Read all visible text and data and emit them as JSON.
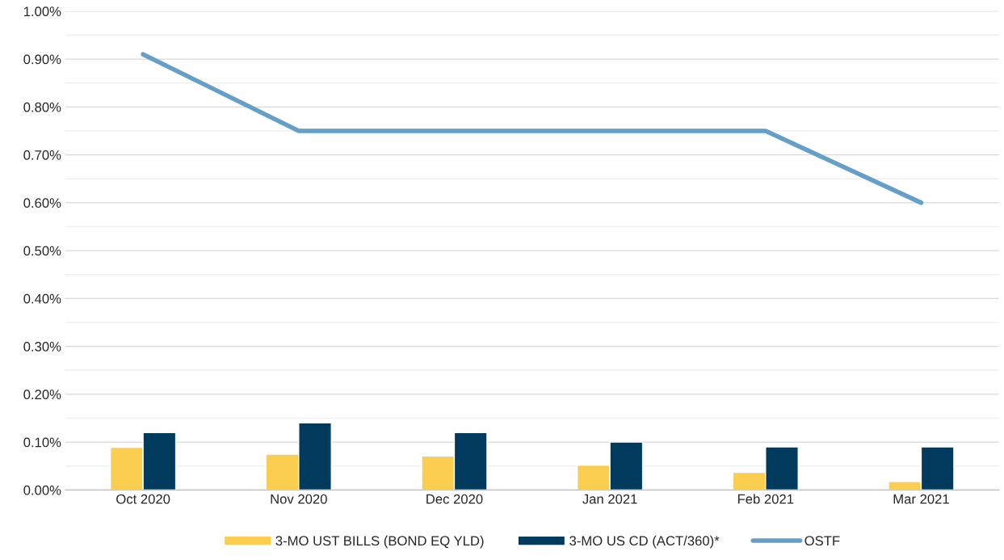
{
  "chart_data": {
    "type": "bar",
    "categories": [
      "Oct 2020",
      "Nov 2020",
      "Dec 2020",
      "Jan 2021",
      "Feb 2021",
      "Mar 2021"
    ],
    "series": [
      {
        "name": "3-MO UST BILLS (BOND EQ YLD)",
        "color": "#fcce4f",
        "values": [
          0.089,
          0.075,
          0.071,
          0.052,
          0.037,
          0.018
        ]
      },
      {
        "name": "3-MO US CD (ACT/360)*",
        "color": "#003a5d",
        "values": [
          0.12,
          0.14,
          0.12,
          0.1,
          0.09,
          0.09
        ]
      },
      {
        "name": "OSTF",
        "type": "line",
        "color": "#659fc8",
        "values": [
          0.91,
          0.75,
          0.75,
          0.75,
          0.75,
          0.6
        ]
      }
    ],
    "ylim": [
      0,
      1.0
    ],
    "yticks": [
      {
        "value": 0,
        "label": "0.00%"
      },
      {
        "value": 0.1,
        "label": "0.10%"
      },
      {
        "value": 0.2,
        "label": "0.20%"
      },
      {
        "value": 0.3,
        "label": "0.30%"
      },
      {
        "value": 0.4,
        "label": "0.40%"
      },
      {
        "value": 0.5,
        "label": "0.50%"
      },
      {
        "value": 0.6,
        "label": "0.60%"
      },
      {
        "value": 0.7,
        "label": "0.70%"
      },
      {
        "value": 0.8,
        "label": "0.80%"
      },
      {
        "value": 0.9,
        "label": "0.90%"
      },
      {
        "value": 1.0,
        "label": "1.00%"
      }
    ],
    "grid": "y",
    "legend": "bottom",
    "marker": "none",
    "line_style": "solid"
  }
}
